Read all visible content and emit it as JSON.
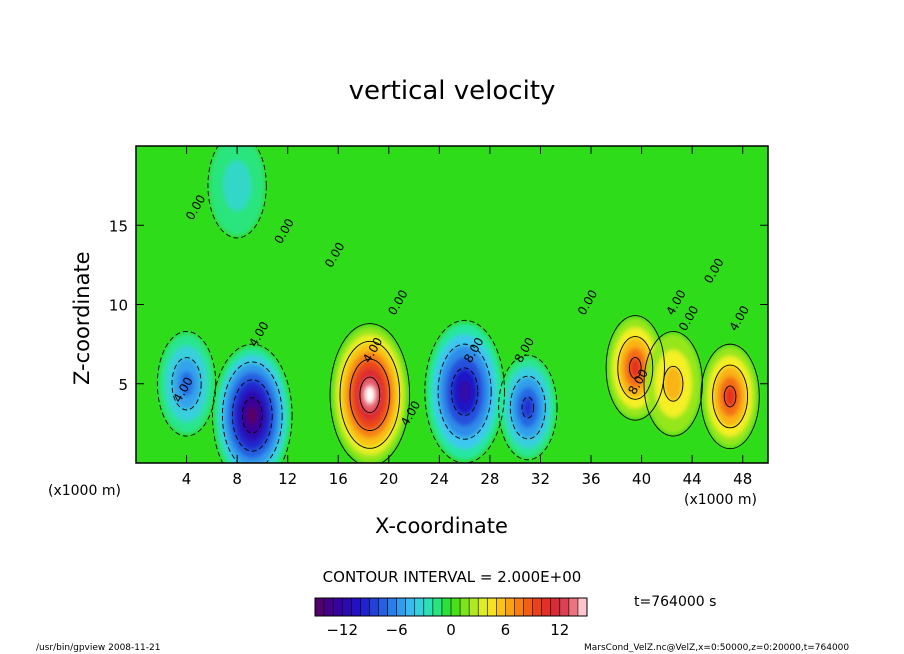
{
  "chart_data": {
    "type": "heatmap",
    "title": "vertical velocity",
    "xlabel": "X-coordinate",
    "ylabel": "Z-coordinate",
    "x_unit": "(x1000 m)",
    "xlim": [
      0,
      50
    ],
    "ylim": [
      0,
      20
    ],
    "x_ticks": [
      "4",
      "8",
      "12",
      "16",
      "20",
      "24",
      "28",
      "32",
      "36",
      "40",
      "44",
      "48"
    ],
    "y_ticks": [
      "5",
      "10",
      "15"
    ],
    "contour_interval": "CONTOUR INTERVAL = 2.000E+00",
    "time": "t=764000 s",
    "colorbar_ticks": [
      "−12",
      "−6",
      "0",
      "6",
      "12"
    ],
    "colorbar_range": [
      -15,
      15
    ],
    "contour_labels": [
      "0.00",
      "0.00",
      "0.00",
      "0.00",
      "0.00",
      "0.00",
      "0.00",
      "4.00",
      "4.00",
      "4.00",
      "4.00",
      "4.00",
      "4.00",
      "8.00",
      "8.00",
      "8.00"
    ],
    "features": [
      {
        "type": "updraft",
        "x": 18.5,
        "z": 4.3,
        "max": 15
      },
      {
        "type": "updraft",
        "x": 39.5,
        "z": 6.0,
        "max": 10
      },
      {
        "type": "updraft",
        "x": 42.5,
        "z": 5.0,
        "max": 6
      },
      {
        "type": "updraft",
        "x": 47.0,
        "z": 4.2,
        "max": 10
      },
      {
        "type": "downdraft",
        "x": 9.2,
        "z": 3.0,
        "min": -15
      },
      {
        "type": "downdraft",
        "x": 26.0,
        "z": 4.5,
        "min": -12
      },
      {
        "type": "downdraft",
        "x": 31.0,
        "z": 3.5,
        "min": -9
      },
      {
        "type": "downdraft",
        "x": 4.0,
        "z": 5.0,
        "min": -7
      },
      {
        "type": "downdraft",
        "x": 8.0,
        "z": 17.5,
        "min": -3
      }
    ]
  },
  "footer": {
    "left": "/usr/bin/gpview   2008-11-21",
    "right": "MarsCond_VelZ.nc@VelZ,x=0:50000,z=0:20000,t=764000"
  },
  "colors": {
    "background_field": "#2fdc19",
    "max_up": "#ffffff",
    "max_down": "#5a0060"
  }
}
